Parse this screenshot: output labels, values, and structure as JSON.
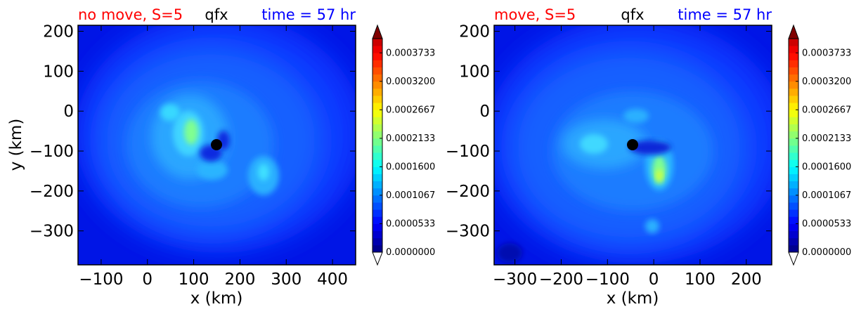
{
  "chart_data": [
    {
      "type": "heatmap",
      "title_left": "no move, S=5",
      "title_center": "qfx",
      "title_right": "time = 57 hr",
      "xlabel": "x (km)",
      "ylabel": "y (km)",
      "xlim": [
        -150,
        450
      ],
      "ylim": [
        -385,
        215
      ],
      "xticks": [
        -100,
        0,
        100,
        200,
        300,
        400
      ],
      "yticks": [
        200,
        100,
        0,
        -100,
        -200,
        -300
      ],
      "center_marker": {
        "x": 142,
        "y": -83
      },
      "colorbar": {
        "min": 0.0,
        "max": 0.0004,
        "ticks": [
          "0.0000000",
          "0.0000533",
          "0.0001067",
          "0.0001600",
          "0.0002133",
          "0.0002667",
          "0.0003200",
          "0.0003733"
        ]
      }
    },
    {
      "type": "heatmap",
      "title_left": "move, S=5",
      "title_center": "qfx",
      "title_right": "time = 57 hr",
      "xlabel": "x (km)",
      "ylabel": "",
      "xlim": [
        -345,
        255
      ],
      "ylim": [
        -385,
        215
      ],
      "xticks": [
        -300,
        -200,
        -100,
        0,
        100,
        200
      ],
      "yticks": [
        200,
        100,
        0,
        -100,
        -200,
        -300
      ],
      "center_marker": {
        "x": -50,
        "y": -83
      },
      "colorbar": {
        "min": 0.0,
        "max": 0.0004,
        "ticks": [
          "0.0000000",
          "0.0000533",
          "0.0001067",
          "0.0001600",
          "0.0002133",
          "0.0002667",
          "0.0003200",
          "0.0003733"
        ]
      }
    }
  ],
  "colors": {
    "title_left": "#ff0000",
    "title_center": "#000000",
    "title_right": "#0000ff"
  }
}
